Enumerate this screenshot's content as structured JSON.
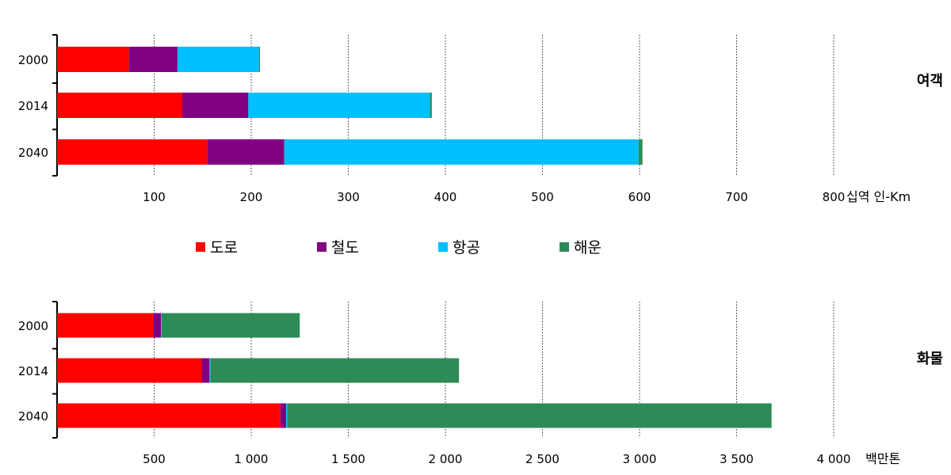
{
  "chart_data": [
    {
      "type": "bar",
      "orientation": "horizontal",
      "stacked": true,
      "panel_label": "여객",
      "categories": [
        "2000",
        "2014",
        "2040"
      ],
      "unit_label": "십역 인-Km",
      "xlim": [
        0,
        800
      ],
      "x_ticks": [
        "100",
        "200",
        "300",
        "400",
        "500",
        "600",
        "700",
        "800"
      ],
      "x_tick_values": [
        100,
        200,
        300,
        400,
        500,
        600,
        700,
        800
      ],
      "grid": "vertical dotted",
      "series": [
        {
          "name": "도로",
          "values": [
            74,
            129,
            155
          ]
        },
        {
          "name": "철도",
          "values": [
            50,
            68,
            79
          ]
        },
        {
          "name": "항공",
          "values": [
            84,
            187,
            365
          ]
        },
        {
          "name": "해운",
          "values": [
            1,
            2,
            4
          ]
        }
      ]
    },
    {
      "type": "bar",
      "orientation": "horizontal",
      "stacked": true,
      "panel_label": "화물",
      "categories": [
        "2000",
        "2014",
        "2040"
      ],
      "unit_label": "백만톤",
      "xlim": [
        0,
        4000
      ],
      "x_ticks": [
        "500",
        "1 000",
        "1 500",
        "2 000",
        "2 500",
        "3 000",
        "3 500",
        "4 000"
      ],
      "x_tick_values": [
        500,
        1000,
        1500,
        2000,
        2500,
        3000,
        3500,
        4000
      ],
      "grid": "vertical dotted",
      "series": [
        {
          "name": "도로",
          "values": [
            495,
            745,
            1150
          ]
        },
        {
          "name": "철도",
          "values": [
            40,
            40,
            30
          ]
        },
        {
          "name": "항공",
          "values": [
            3,
            5,
            6
          ]
        },
        {
          "name": "해운",
          "values": [
            712,
            1280,
            2494
          ]
        }
      ]
    }
  ],
  "legend": {
    "placement": "center",
    "items": [
      {
        "label": "도로",
        "color": "#ff0000"
      },
      {
        "label": "철도",
        "color": "#800080"
      },
      {
        "label": "항공",
        "color": "#00bfff"
      },
      {
        "label": "해운",
        "color": "#2e8b57"
      }
    ]
  }
}
